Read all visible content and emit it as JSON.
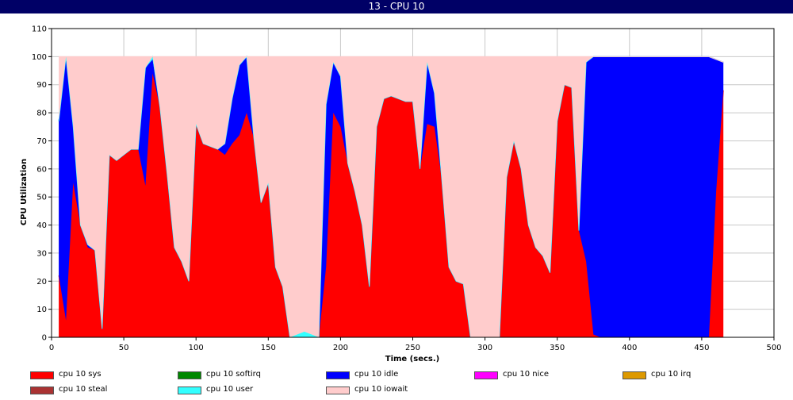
{
  "window": {
    "title": "13 - CPU 10"
  },
  "chart_data": {
    "type": "area",
    "stacked": true,
    "xlabel": "Time (secs.)",
    "ylabel": "CPU Utilization",
    "xlim": [
      0,
      500
    ],
    "ylim": [
      0,
      110
    ],
    "xticks": [
      0,
      50,
      100,
      150,
      200,
      250,
      300,
      350,
      400,
      450,
      500
    ],
    "yticks": [
      0,
      10,
      20,
      30,
      40,
      50,
      60,
      70,
      80,
      90,
      100,
      110
    ],
    "grid": true,
    "legend_position": "bottom",
    "x": [
      5,
      10,
      15,
      20,
      25,
      30,
      35,
      40,
      45,
      50,
      55,
      60,
      65,
      70,
      75,
      80,
      85,
      90,
      95,
      100,
      105,
      110,
      115,
      120,
      125,
      130,
      135,
      140,
      145,
      150,
      155,
      160,
      165,
      170,
      175,
      180,
      185,
      190,
      195,
      200,
      205,
      210,
      215,
      220,
      225,
      230,
      235,
      240,
      245,
      250,
      255,
      260,
      265,
      270,
      275,
      280,
      285,
      290,
      295,
      300,
      305,
      310,
      315,
      320,
      325,
      330,
      335,
      340,
      345,
      350,
      355,
      360,
      365,
      370,
      375,
      380,
      385,
      390,
      395,
      400,
      405,
      410,
      415,
      420,
      425,
      430,
      435,
      440,
      445,
      450,
      455,
      460,
      465
    ],
    "series": [
      {
        "name": "cpu 10 sys",
        "color": "#ff0000",
        "values": [
          22,
          6,
          55,
          40,
          32,
          31,
          3,
          65,
          63,
          65,
          67,
          67,
          54,
          94,
          82,
          58,
          32,
          27,
          20,
          76,
          69,
          68,
          67,
          65,
          69,
          72,
          80,
          71,
          48,
          55,
          25,
          18,
          0,
          0,
          0,
          0,
          0,
          25,
          80,
          75,
          62,
          52,
          40,
          18,
          75,
          85,
          86,
          85,
          84,
          84,
          60,
          76,
          75,
          57,
          25,
          20,
          19,
          0,
          0,
          0,
          0,
          0,
          57,
          70,
          60,
          40,
          32,
          29,
          23,
          77,
          90,
          89,
          38,
          27,
          1,
          0,
          0,
          0,
          0,
          0,
          0,
          0,
          0,
          0,
          0,
          0,
          0,
          0,
          0,
          0,
          0,
          52,
          88
        ]
      },
      {
        "name": "cpu 10 softirq",
        "color": "#008800",
        "values": [
          0,
          0,
          0,
          0,
          0,
          0,
          0,
          0,
          0,
          0,
          0,
          0,
          0,
          0,
          0,
          0,
          0,
          0,
          0,
          0,
          0,
          0,
          0,
          0,
          0,
          0,
          0,
          0,
          0,
          0,
          0,
          0,
          0,
          0,
          0,
          0,
          0,
          0,
          0,
          0,
          0,
          0,
          0,
          0,
          0,
          0,
          0,
          0,
          0,
          0,
          0,
          0,
          0,
          0,
          0,
          0,
          0,
          0,
          0,
          0,
          0,
          0,
          0,
          0,
          0,
          0,
          0,
          0,
          0,
          0,
          0,
          0,
          0,
          0,
          0,
          0,
          0,
          0,
          0,
          0,
          0,
          0,
          0,
          0,
          0,
          0,
          0,
          0,
          0,
          0,
          0,
          0,
          0
        ]
      },
      {
        "name": "cpu 10 idle",
        "color": "#0000ff",
        "values": [
          55,
          94,
          20,
          0,
          1,
          0,
          0,
          0,
          0,
          0,
          0,
          0,
          42,
          5,
          0,
          0,
          0,
          0,
          0,
          0,
          0,
          0,
          0,
          4,
          16,
          25,
          20,
          0,
          0,
          0,
          0,
          0,
          0,
          0,
          0,
          0,
          0,
          58,
          18,
          18,
          0,
          0,
          0,
          0,
          0,
          0,
          0,
          0,
          0,
          0,
          0,
          22,
          12,
          0,
          0,
          0,
          0,
          0,
          0,
          0,
          0,
          0,
          0,
          0,
          0,
          0,
          0,
          0,
          0,
          0,
          0,
          0,
          0,
          71,
          99,
          100,
          100,
          100,
          100,
          100,
          100,
          100,
          100,
          100,
          100,
          100,
          100,
          100,
          100,
          100,
          100,
          47,
          10
        ]
      },
      {
        "name": "cpu 10 nice",
        "color": "#ff00ff",
        "values": [
          0,
          0,
          0,
          0,
          0,
          0,
          0,
          0,
          0,
          0,
          0,
          0,
          0,
          0,
          0,
          0,
          0,
          0,
          0,
          0,
          0,
          0,
          0,
          0,
          0,
          0,
          0,
          0,
          0,
          0,
          0,
          0,
          0,
          0,
          0,
          0,
          0,
          0,
          0,
          0,
          0,
          0,
          0,
          0,
          0,
          0,
          0,
          0,
          0,
          0,
          0,
          0,
          0,
          0,
          0,
          0,
          0,
          0,
          0,
          0,
          0,
          0,
          0,
          0,
          0,
          0,
          0,
          0,
          0,
          0,
          0,
          0,
          0,
          0,
          0,
          0,
          0,
          0,
          0,
          0,
          0,
          0,
          0,
          0,
          0,
          0,
          0,
          0,
          0,
          0,
          0,
          0,
          0
        ]
      },
      {
        "name": "cpu 10 irq",
        "color": "#dd9900",
        "values": [
          0,
          0,
          0,
          0,
          0,
          0,
          0,
          0,
          0,
          0,
          0,
          0,
          0,
          0,
          0,
          0,
          0,
          0,
          0,
          0,
          0,
          0,
          0,
          0,
          0,
          0,
          0,
          0,
          0,
          0,
          0,
          0,
          0,
          0,
          0,
          0,
          0,
          0,
          0,
          0,
          0,
          0,
          0,
          0,
          0,
          0,
          0,
          0,
          0,
          0,
          0,
          0,
          0,
          0,
          0,
          0,
          0,
          0,
          0,
          0,
          0,
          0,
          0,
          0,
          0,
          0,
          0,
          0,
          0,
          0,
          0,
          0,
          0,
          0,
          0,
          0,
          0,
          0,
          0,
          0,
          0,
          0,
          0,
          0,
          0,
          0,
          0,
          0,
          0,
          0,
          0,
          0,
          0
        ]
      },
      {
        "name": "cpu 10 steal",
        "color": "#aa3333",
        "values": [
          0,
          0,
          0,
          0,
          0,
          0,
          0,
          0,
          0,
          0,
          0,
          0,
          0,
          0,
          0,
          0,
          0,
          0,
          0,
          0,
          0,
          0,
          0,
          0,
          0,
          0,
          0,
          0,
          0,
          0,
          0,
          0,
          0,
          0,
          0,
          0,
          0,
          0,
          0,
          0,
          0,
          0,
          0,
          0,
          0,
          0,
          0,
          0,
          0,
          0,
          0,
          0,
          0,
          0,
          0,
          0,
          0,
          0,
          0,
          0,
          0,
          0,
          0,
          0,
          0,
          0,
          0,
          0,
          0,
          0,
          0,
          0,
          0,
          0,
          0,
          0,
          0,
          0,
          0,
          0,
          0,
          0,
          0,
          0,
          0,
          0,
          0,
          0,
          0,
          0,
          0,
          0,
          0
        ]
      },
      {
        "name": "cpu 10 user",
        "color": "#33ffff",
        "values": [
          0,
          0,
          0,
          0,
          0,
          0,
          0,
          0,
          0,
          0,
          0,
          0,
          0,
          1,
          0,
          0,
          0,
          0,
          0,
          0,
          0,
          0,
          0,
          0,
          0,
          0,
          0,
          0,
          0,
          0,
          0,
          0,
          0,
          1,
          2,
          1,
          0,
          0,
          0,
          0,
          0,
          0,
          0,
          0,
          0,
          0,
          0,
          0,
          0,
          0,
          0,
          0,
          0,
          0,
          0,
          0,
          0,
          0,
          0,
          0,
          0,
          0,
          0,
          0,
          0,
          0,
          0,
          0,
          0,
          0,
          0,
          0,
          0,
          0,
          0,
          0,
          0,
          0,
          0,
          0,
          0,
          0,
          0,
          0,
          0,
          0,
          0,
          0,
          0,
          0,
          0,
          0,
          0
        ]
      },
      {
        "name": "cpu 10 iowait",
        "color": "#ffcccc",
        "values": [
          23,
          0,
          25,
          60,
          67,
          69,
          97,
          35,
          37,
          35,
          33,
          33,
          4,
          0,
          18,
          42,
          68,
          73,
          80,
          24,
          31,
          32,
          33,
          31,
          15,
          3,
          0,
          29,
          52,
          45,
          75,
          82,
          100,
          99,
          98,
          99,
          100,
          17,
          2,
          7,
          38,
          48,
          60,
          82,
          25,
          15,
          14,
          15,
          16,
          16,
          40,
          2,
          13,
          43,
          75,
          80,
          81,
          100,
          100,
          100,
          100,
          100,
          43,
          30,
          40,
          60,
          68,
          71,
          77,
          23,
          10,
          11,
          62,
          2,
          0,
          0,
          0,
          0,
          0,
          0,
          0,
          0,
          0,
          0,
          0,
          0,
          0,
          0,
          0,
          0,
          0,
          0,
          0
        ]
      }
    ]
  }
}
